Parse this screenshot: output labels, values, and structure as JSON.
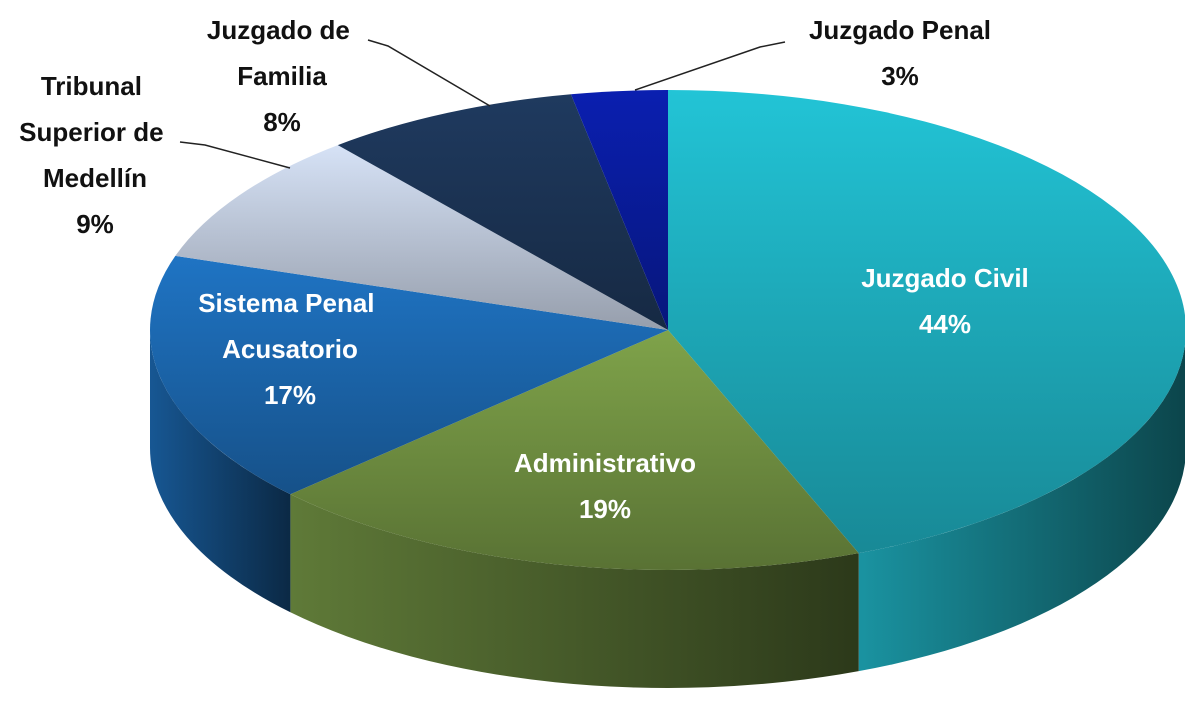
{
  "chart_data": {
    "type": "pie",
    "categories": [
      "Juzgado Civil",
      "Administrativo",
      "Sistema Penal Acusatorio",
      "Tribunal Superior de Medellín",
      "Juzgado de Familia",
      "Juzgado Penal"
    ],
    "values": [
      44,
      19,
      17,
      9,
      8,
      3
    ],
    "value_labels": [
      "44%",
      "19%",
      "17%",
      "9%",
      "8%",
      "3%"
    ],
    "colors": [
      "#22c4d6",
      "#7fa34a",
      "#1f74c4",
      "#d6e2f6",
      "#1f3a5f",
      "#0a1fb0"
    ],
    "start_angle": 0,
    "direction": "clockwise"
  }
}
